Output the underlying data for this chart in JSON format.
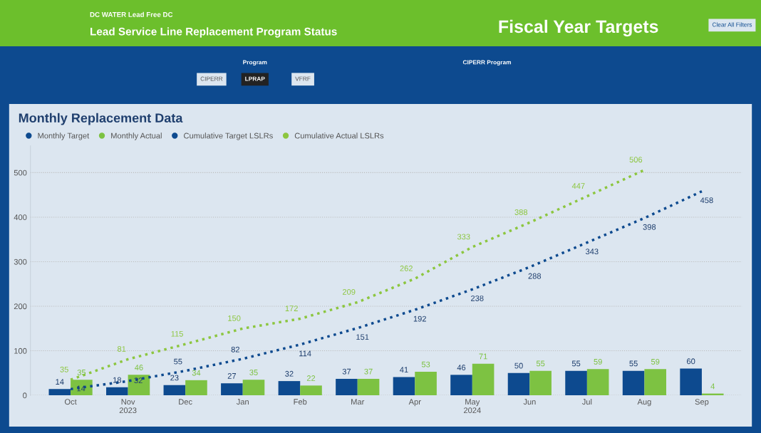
{
  "chart_data": {
    "type": "bar",
    "title": "Monthly Replacement Data",
    "categories": [
      "Oct",
      "Nov\n2023",
      "Dec",
      "Jan",
      "Feb",
      "Mar",
      "Apr",
      "May\n2024",
      "Jun",
      "Jul",
      "Aug",
      "Sep"
    ],
    "series": [
      {
        "name": "Monthly Target",
        "type": "bar",
        "color": "#0d4a8f",
        "values": [
          14,
          18,
          23,
          27,
          32,
          37,
          41,
          46,
          50,
          55,
          55,
          60
        ]
      },
      {
        "name": "Monthly Actual",
        "type": "bar",
        "color": "#7dc242",
        "values": [
          35,
          46,
          34,
          35,
          22,
          37,
          53,
          71,
          55,
          59,
          59,
          4
        ]
      },
      {
        "name": "Cumulative Target LSLRs",
        "type": "line",
        "color": "#0d4a8f",
        "line_style": "dotted",
        "values": [
          14,
          32,
          55,
          82,
          114,
          151,
          192,
          238,
          288,
          343,
          398,
          458
        ]
      },
      {
        "name": "Cumulative Actual LSLRs",
        "type": "line",
        "color": "#8cc63f",
        "line_style": "dotted",
        "values": [
          35,
          81,
          115,
          150,
          172,
          209,
          262,
          333,
          388,
          447,
          506,
          null
        ]
      }
    ],
    "ylim": [
      0,
      560
    ],
    "yticks": [
      0,
      100,
      200,
      300,
      400,
      500
    ],
    "grid": "y",
    "legend": "top left",
    "data_labels": true,
    "annotations": [
      "DC WATER Lead Free DC",
      "Lead Service Line Replacement Program Status",
      "Fiscal Year Targets",
      "Clear All Filters",
      "Program",
      "CIPERR",
      "LPRAP",
      "VFRF",
      "CIPERR Program"
    ]
  }
}
